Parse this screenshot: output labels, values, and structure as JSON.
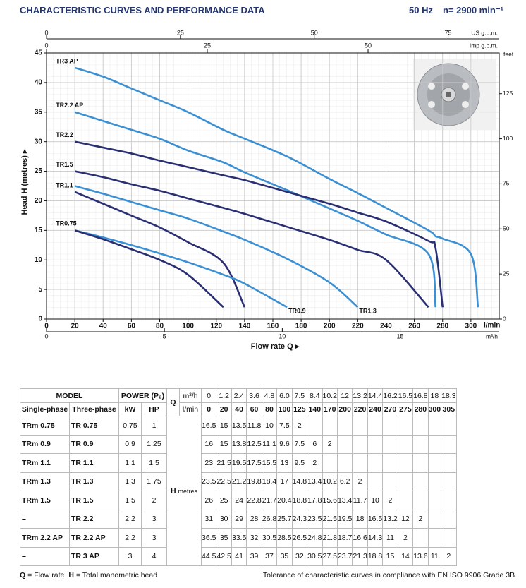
{
  "header": {
    "title": "CHARACTERISTIC CURVES AND PERFORMANCE DATA",
    "frequency": "50 Hz",
    "speed": "n= 2900 min⁻¹"
  },
  "chart_data": {
    "type": "line",
    "x_label": "Flow rate Q ▸",
    "y_label": "Head H (metres) ▸",
    "x_unit": "l/min",
    "xlim": [
      0,
      320
    ],
    "xticks": [
      0,
      20,
      40,
      60,
      80,
      100,
      120,
      140,
      160,
      180,
      200,
      220,
      240,
      260,
      280,
      300
    ],
    "ylim": [
      0,
      45
    ],
    "yticks": [
      0,
      5,
      10,
      15,
      20,
      25,
      30,
      35,
      40,
      45
    ],
    "grid": true,
    "us_gpm_axis": {
      "label": "US g.p.m.",
      "lim": [
        0,
        84.54
      ],
      "ticks": [
        0,
        25,
        50,
        75
      ]
    },
    "imp_gpm_axis": {
      "label": "Imp g.p.m.",
      "lim": [
        0,
        70.39
      ],
      "ticks": [
        0,
        25,
        50
      ]
    },
    "m3h_axis": {
      "label": "m³/h",
      "lim": [
        0,
        19.2
      ],
      "ticks": [
        0,
        5,
        10,
        15
      ]
    },
    "feet_axis": {
      "label": "feet",
      "lim": [
        0,
        147.6
      ],
      "ticks": [
        0,
        25,
        50,
        75,
        100,
        125
      ]
    },
    "series": [
      {
        "name": "TR3 AP",
        "color": "#3b8fd3",
        "label_position": "start",
        "x": [
          20,
          40,
          60,
          80,
          100,
          125,
          140,
          170,
          200,
          220,
          240,
          270,
          275,
          280,
          300,
          305
        ],
        "values": [
          42.5,
          41,
          39,
          37,
          35,
          32,
          30.5,
          27.5,
          23.7,
          21.3,
          18.8,
          15,
          14,
          13.6,
          11,
          2
        ]
      },
      {
        "name": "TR2.2 AP",
        "color": "#3b8fd3",
        "label_position": "start",
        "x": [
          20,
          40,
          60,
          80,
          100,
          125,
          140,
          170,
          200,
          220,
          240,
          270,
          275
        ],
        "values": [
          35,
          33.5,
          32,
          30.5,
          28.5,
          26.5,
          24.8,
          21.8,
          18.7,
          16.6,
          14.3,
          11,
          2
        ]
      },
      {
        "name": "TR2.2",
        "color": "#2a2f72",
        "label_position": "start",
        "x": [
          20,
          40,
          60,
          80,
          100,
          125,
          140,
          170,
          200,
          220,
          240,
          270,
          275,
          280
        ],
        "values": [
          30,
          29,
          28,
          26.8,
          25.7,
          24.3,
          23.5,
          21.5,
          19.5,
          18,
          16.5,
          13.2,
          12,
          2
        ]
      },
      {
        "name": "TR1.5",
        "color": "#2a2f72",
        "label_position": "start",
        "x": [
          20,
          40,
          60,
          80,
          100,
          125,
          140,
          170,
          200,
          220,
          240,
          270
        ],
        "values": [
          25,
          24,
          22.8,
          21.7,
          20.4,
          18.8,
          17.8,
          15.6,
          13.4,
          11.7,
          10,
          2
        ]
      },
      {
        "name": "TR1.3",
        "color": "#3b8fd3",
        "label_position": "end",
        "x": [
          20,
          40,
          60,
          80,
          100,
          125,
          140,
          170,
          200,
          220
        ],
        "values": [
          22.5,
          21.2,
          19.8,
          18.4,
          17,
          14.8,
          13.4,
          10.2,
          6.2,
          2
        ]
      },
      {
        "name": "TR1.1",
        "color": "#2a2f72",
        "label_position": "start",
        "x": [
          20,
          40,
          60,
          80,
          100,
          125,
          140
        ],
        "values": [
          21.5,
          19.5,
          17.5,
          15.5,
          13,
          9.5,
          2
        ]
      },
      {
        "name": "TR0.9",
        "color": "#3b8fd3",
        "label_position": "end",
        "x": [
          20,
          40,
          60,
          80,
          100,
          125,
          140,
          170
        ],
        "values": [
          15,
          13.8,
          12.5,
          11.1,
          9.6,
          7.5,
          6,
          2
        ]
      },
      {
        "name": "TR0.75",
        "color": "#2a2f72",
        "label_position": "start",
        "x": [
          20,
          40,
          60,
          80,
          100,
          125
        ],
        "values": [
          15,
          13.5,
          11.8,
          10,
          7.5,
          2
        ]
      }
    ]
  },
  "table": {
    "header": {
      "model": "MODEL",
      "single_phase": "Single-phase",
      "three_phase": "Three-phase",
      "power": "POWER (P₂)",
      "kw": "kW",
      "hp": "HP",
      "q": "Q",
      "q_units": [
        "m³/h",
        "l/min"
      ],
      "h": "H",
      "h_unit": "metres"
    },
    "flow_m3h": [
      "0",
      "1.2",
      "2.4",
      "3.6",
      "4.8",
      "6.0",
      "7.5",
      "8.4",
      "10.2",
      "12",
      "13.2",
      "14.4",
      "16.2",
      "16.5",
      "16.8",
      "18",
      "18.3"
    ],
    "flow_lmin": [
      "0",
      "20",
      "40",
      "60",
      "80",
      "100",
      "125",
      "140",
      "170",
      "200",
      "220",
      "240",
      "270",
      "275",
      "280",
      "300",
      "305"
    ],
    "rows": [
      {
        "single_phase": "TRm 0.75",
        "three_phase": "TR 0.75",
        "kw": "0.75",
        "hp": "1",
        "head": [
          "16.5",
          "15",
          "13.5",
          "11.8",
          "10",
          "7.5",
          "2"
        ]
      },
      {
        "single_phase": "TRm 0.9",
        "three_phase": "TR 0.9",
        "kw": "0.9",
        "hp": "1.25",
        "head": [
          "16",
          "15",
          "13.8",
          "12.5",
          "11.1",
          "9.6",
          "7.5",
          "6",
          "2"
        ]
      },
      {
        "single_phase": "TRm 1.1",
        "three_phase": "TR 1.1",
        "kw": "1.1",
        "hp": "1.5",
        "head": [
          "23",
          "21.5",
          "19.5",
          "17.5",
          "15.5",
          "13",
          "9.5",
          "2"
        ]
      },
      {
        "single_phase": "TRm 1.3",
        "three_phase": "TR 1.3",
        "kw": "1.3",
        "hp": "1.75",
        "head": [
          "23.5",
          "22.5",
          "21.2",
          "19.8",
          "18.4",
          "17",
          "14.8",
          "13.4",
          "10.2",
          "6.2",
          "2"
        ]
      },
      {
        "single_phase": "TRm 1.5",
        "three_phase": "TR 1.5",
        "kw": "1.5",
        "hp": "2",
        "head": [
          "26",
          "25",
          "24",
          "22.8",
          "21.7",
          "20.4",
          "18.8",
          "17.8",
          "15.6",
          "13.4",
          "11.7",
          "10",
          "2"
        ]
      },
      {
        "single_phase": "–",
        "three_phase": "TR 2.2",
        "kw": "2.2",
        "hp": "3",
        "head": [
          "31",
          "30",
          "29",
          "28",
          "26.8",
          "25.7",
          "24.3",
          "23.5",
          "21.5",
          "19.5",
          "18",
          "16.5",
          "13.2",
          "12",
          "2"
        ]
      },
      {
        "single_phase": "TRm 2.2 AP",
        "three_phase": "TR 2.2 AP",
        "kw": "2.2",
        "hp": "3",
        "head": [
          "36.5",
          "35",
          "33.5",
          "32",
          "30.5",
          "28.5",
          "26.5",
          "24.8",
          "21.8",
          "18.7",
          "16.6",
          "14.3",
          "11",
          "2"
        ]
      },
      {
        "single_phase": "–",
        "three_phase": "TR 3 AP",
        "kw": "3",
        "hp": "4",
        "head": [
          "44.5",
          "42.5",
          "41",
          "39",
          "37",
          "35",
          "32",
          "30.5",
          "27.5",
          "23.7",
          "21.3",
          "18.8",
          "15",
          "14",
          "13.6",
          "11",
          "2"
        ]
      }
    ]
  },
  "footer": {
    "legend": [
      {
        "symbol": "Q",
        "text": "= Flow rate"
      },
      {
        "symbol": "H",
        "text": "= Total manometric head"
      }
    ],
    "note": "Tolerance of characteristic curves in compliance with EN ISO 9906 Grade 3B."
  }
}
